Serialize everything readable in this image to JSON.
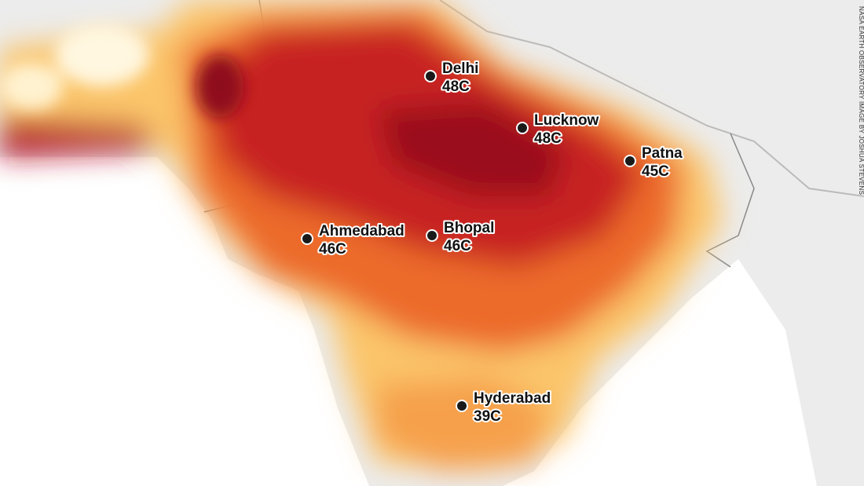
{
  "map": {
    "cities": [
      {
        "name": "Delhi",
        "temp": "48C"
      },
      {
        "name": "Lucknow",
        "temp": "48C"
      },
      {
        "name": "Patna",
        "temp": "45C"
      },
      {
        "name": "Ahmedabad",
        "temp": "46C"
      },
      {
        "name": "Bhopal",
        "temp": "46C"
      },
      {
        "name": "Hyderabad",
        "temp": "39C"
      }
    ],
    "credit": "NASA EARTH OBSERVATORY IMAGE BY JOSHUA STEVENS"
  }
}
